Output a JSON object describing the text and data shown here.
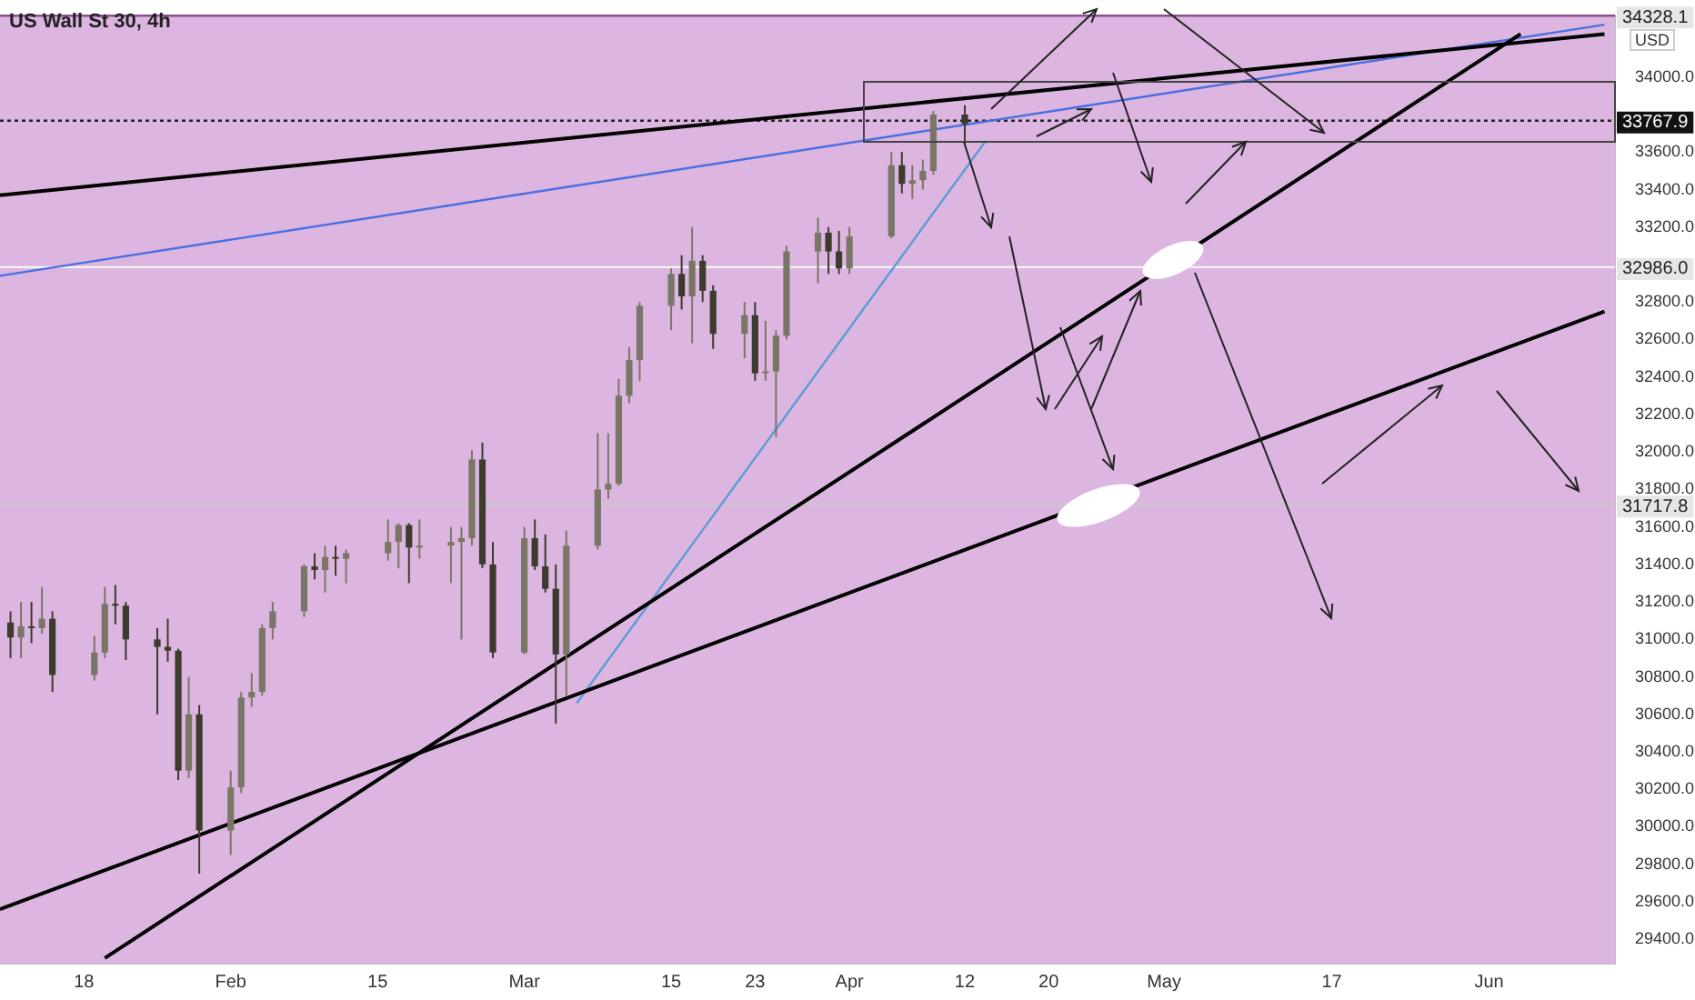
{
  "chart_data": {
    "type": "candlestick",
    "title": "US Wall St 30, 4h",
    "x": [
      "--01-11",
      "--01-12",
      "--01-13",
      "--01-14",
      "--01-15",
      "--01-19",
      "--01-20",
      "--01-21",
      "--01-22",
      "--01-25",
      "--01-26",
      "--01-27",
      "--01-28",
      "--01-29",
      "--02-01",
      "--02-02",
      "--02-03",
      "--02-04",
      "--02-05",
      "--02-08",
      "--02-09",
      "--02-10",
      "--02-11",
      "--02-12",
      "--02-16",
      "--02-17",
      "--02-18",
      "--02-19",
      "--02-22",
      "--02-23",
      "--02-24",
      "--02-25",
      "--02-26",
      "--03-01",
      "--03-02",
      "--03-03",
      "--03-04",
      "--03-05",
      "--03-08",
      "--03-09",
      "--03-10",
      "--03-11",
      "--03-12",
      "--03-15",
      "--03-16",
      "--03-17",
      "--03-18",
      "--03-19",
      "--03-22",
      "--03-23",
      "--03-24",
      "--03-25",
      "--03-26",
      "--03-29",
      "--03-30",
      "--03-31",
      "--04-01",
      "--04-05",
      "--04-06",
      "--04-07",
      "--04-08",
      "--04-09",
      "--04-12"
    ],
    "ohlc": [
      [
        31090,
        31150,
        30900,
        31010
      ],
      [
        31010,
        31200,
        30900,
        31070
      ],
      [
        31070,
        31200,
        30980,
        31060
      ],
      [
        31060,
        31280,
        31030,
        31110
      ],
      [
        31110,
        31150,
        30720,
        30810
      ],
      [
        30810,
        31020,
        30780,
        30930
      ],
      [
        30930,
        31280,
        30900,
        31190
      ],
      [
        31190,
        31290,
        31080,
        31180
      ],
      [
        31180,
        31200,
        30890,
        31000
      ],
      [
        31000,
        31060,
        30600,
        30960
      ],
      [
        30960,
        31110,
        30880,
        30940
      ],
      [
        30940,
        30950,
        30250,
        30300
      ],
      [
        30300,
        30800,
        30260,
        30600
      ],
      [
        30600,
        30650,
        29750,
        29980
      ],
      [
        29980,
        30300,
        29850,
        30210
      ],
      [
        30210,
        30720,
        30180,
        30690
      ],
      [
        30690,
        30820,
        30640,
        30720
      ],
      [
        30720,
        31080,
        30700,
        31060
      ],
      [
        31060,
        31200,
        31000,
        31150
      ],
      [
        31150,
        31400,
        31120,
        31390
      ],
      [
        31390,
        31460,
        31320,
        31370
      ],
      [
        31370,
        31500,
        31250,
        31440
      ],
      [
        31440,
        31500,
        31340,
        31430
      ],
      [
        31430,
        31480,
        31300,
        31460
      ],
      [
        31460,
        31640,
        31420,
        31520
      ],
      [
        31520,
        31620,
        31380,
        31610
      ],
      [
        31610,
        31620,
        31300,
        31490
      ],
      [
        31490,
        31640,
        31430,
        31500
      ],
      [
        31500,
        31600,
        31300,
        31520
      ],
      [
        31520,
        31600,
        31000,
        31540
      ],
      [
        31540,
        32010,
        31500,
        31960
      ],
      [
        31960,
        32050,
        31380,
        31400
      ],
      [
        31400,
        31520,
        30900,
        30930
      ],
      [
        30930,
        31600,
        30920,
        31540
      ],
      [
        31540,
        31640,
        31370,
        31390
      ],
      [
        31390,
        31560,
        31250,
        31270
      ],
      [
        31270,
        31400,
        30550,
        30920
      ],
      [
        30920,
        31580,
        30700,
        31500
      ],
      [
        31500,
        32100,
        31480,
        31800
      ],
      [
        31800,
        32100,
        31750,
        31830
      ],
      [
        31830,
        32390,
        31820,
        32300
      ],
      [
        32300,
        32560,
        32260,
        32490
      ],
      [
        32490,
        32800,
        32380,
        32780
      ],
      [
        32780,
        32980,
        32650,
        32950
      ],
      [
        32950,
        33050,
        32760,
        32830
      ],
      [
        32830,
        33200,
        32580,
        33020
      ],
      [
        33020,
        33050,
        32800,
        32860
      ],
      [
        32860,
        32890,
        32550,
        32630
      ],
      [
        32630,
        32800,
        32500,
        32730
      ],
      [
        32730,
        32800,
        32380,
        32420
      ],
      [
        32420,
        32700,
        32380,
        32430
      ],
      [
        32430,
        32650,
        32080,
        32620
      ],
      [
        32620,
        33100,
        32600,
        33070
      ],
      [
        33070,
        33250,
        32900,
        33170
      ],
      [
        33170,
        33200,
        32950,
        33070
      ],
      [
        33070,
        33180,
        32950,
        32980
      ],
      [
        32980,
        33200,
        32950,
        33150
      ],
      [
        33150,
        33600,
        33140,
        33530
      ],
      [
        33530,
        33600,
        33380,
        33430
      ],
      [
        33430,
        33530,
        33350,
        33450
      ],
      [
        33450,
        33560,
        33400,
        33500
      ],
      [
        33500,
        33820,
        33480,
        33800
      ],
      [
        33800,
        33850,
        33640,
        33750
      ]
    ],
    "colors": [
      "#3d3a2e",
      "#7a7666",
      "#3d3a2e",
      "#7a7666",
      "#3d3a2e",
      "#7a7666",
      "#7a7666",
      "#3d3a2e",
      "#3d3a2e",
      "#3d3a2e",
      "#3d3a2e",
      "#3d3a2e",
      "#7a7666",
      "#3d3a2e",
      "#7a7666",
      "#7a7666",
      "#7a7666",
      "#7a7666",
      "#7a7666",
      "#7a7666",
      "#3d3a2e",
      "#7a7666",
      "#3d3a2e",
      "#7a7666",
      "#7a7666",
      "#7a7666",
      "#3d3a2e",
      "#7a7666",
      "#7a7666",
      "#7a7666",
      "#7a7666",
      "#3d3a2e",
      "#3d3a2e",
      "#7a7666",
      "#3d3a2e",
      "#3d3a2e",
      "#3d3a2e",
      "#7a7666",
      "#7a7666",
      "#7a7666",
      "#7a7666",
      "#7a7666",
      "#7a7666",
      "#7a7666",
      "#3d3a2e",
      "#7a7666",
      "#3d3a2e",
      "#3d3a2e",
      "#7a7666",
      "#3d3a2e",
      "#7a7666",
      "#7a7666",
      "#7a7666",
      "#7a7666",
      "#3d3a2e",
      "#3d3a2e",
      "#7a7666",
      "#7a7666",
      "#3d3a2e",
      "#7a7666",
      "#7a7666",
      "#7a7666",
      "#3d3a2e"
    ],
    "series": [
      {
        "type": "line",
        "color": "#000000",
        "x": [
          "--01-10",
          "--06-12"
        ],
        "values": [
          33370,
          34230
        ]
      },
      {
        "type": "line",
        "color": "#000000",
        "x": [
          "--01-20",
          "--06-04"
        ],
        "values": [
          29300,
          34230
        ]
      },
      {
        "type": "line",
        "color": "#000000",
        "x": [
          "--01-10",
          "--06-12"
        ],
        "values": [
          29560,
          32750
        ]
      },
      {
        "type": "line",
        "color": "#5b9bd5",
        "x": [
          "--03-06",
          "--04-14"
        ],
        "values": [
          30660,
          33660
        ]
      },
      {
        "type": "line",
        "color": "#4a6fe0",
        "x": [
          "--01-10",
          "--06-12"
        ],
        "values": [
          32940,
          34280
        ]
      }
    ],
    "xlim": [
      "--01-10",
      "--06-13"
    ],
    "xticks": [
      {
        "value": "--01-18",
        "label": "18"
      },
      {
        "value": "--02-01",
        "label": "Feb"
      },
      {
        "value": "--02-15",
        "label": "15"
      },
      {
        "value": "--03-01",
        "label": "Mar"
      },
      {
        "value": "--03-15",
        "label": "15"
      },
      {
        "value": "--03-23",
        "label": "23"
      },
      {
        "value": "--04-01",
        "label": "Apr"
      },
      {
        "value": "--04-12",
        "label": "12"
      },
      {
        "value": "--04-20",
        "label": "20"
      },
      {
        "value": "--05-01",
        "label": "May"
      },
      {
        "value": "--05-17",
        "label": "17"
      },
      {
        "value": "--06-01",
        "label": "Jun"
      }
    ],
    "ylim": [
      29270,
      34330
    ],
    "yticks": [
      {
        "value": 29400,
        "label": "29400.0"
      },
      {
        "value": 29600,
        "label": "29600.0"
      },
      {
        "value": 29800,
        "label": "29800.0"
      },
      {
        "value": 30000,
        "label": "30000.0"
      },
      {
        "value": 30200,
        "label": "30200.0"
      },
      {
        "value": 30400,
        "label": "30400.0"
      },
      {
        "value": 30600,
        "label": "30600.0"
      },
      {
        "value": 30800,
        "label": "30800.0"
      },
      {
        "value": 31000,
        "label": "31000.0"
      },
      {
        "value": 31200,
        "label": "31200.0"
      },
      {
        "value": 31400,
        "label": "31400.0"
      },
      {
        "value": 31600,
        "label": "31600.0"
      },
      {
        "value": 31800,
        "label": "31800.0"
      },
      {
        "value": 32000,
        "label": "32000.0"
      },
      {
        "value": 32200,
        "label": "32200.0"
      },
      {
        "value": 32400,
        "label": "32400.0"
      },
      {
        "value": 32600,
        "label": "32600.0"
      },
      {
        "value": 32800,
        "label": "32800.0"
      },
      {
        "value": 33200,
        "label": "33200.0"
      },
      {
        "value": 33400,
        "label": "33400.0"
      },
      {
        "value": 33600,
        "label": "33600.0"
      },
      {
        "value": 34000,
        "label": "34000.0"
      }
    ],
    "ref_lines": [
      {
        "axis": "y",
        "value": 34328.1,
        "label": "34328.1",
        "color": "#8a4f8f"
      },
      {
        "axis": "y",
        "value": 33767.9,
        "label": "33767.9",
        "color": "#222222",
        "line_style": "dotted"
      },
      {
        "axis": "y",
        "value": 32986.0,
        "label": "32986.0",
        "color": "#f4f4f4"
      },
      {
        "axis": "y",
        "value": 31717.8,
        "label": "31717.8",
        "color": "#c8c8c8"
      }
    ],
    "annotations": [
      "USD"
    ],
    "grid": false,
    "legend": false
  }
}
